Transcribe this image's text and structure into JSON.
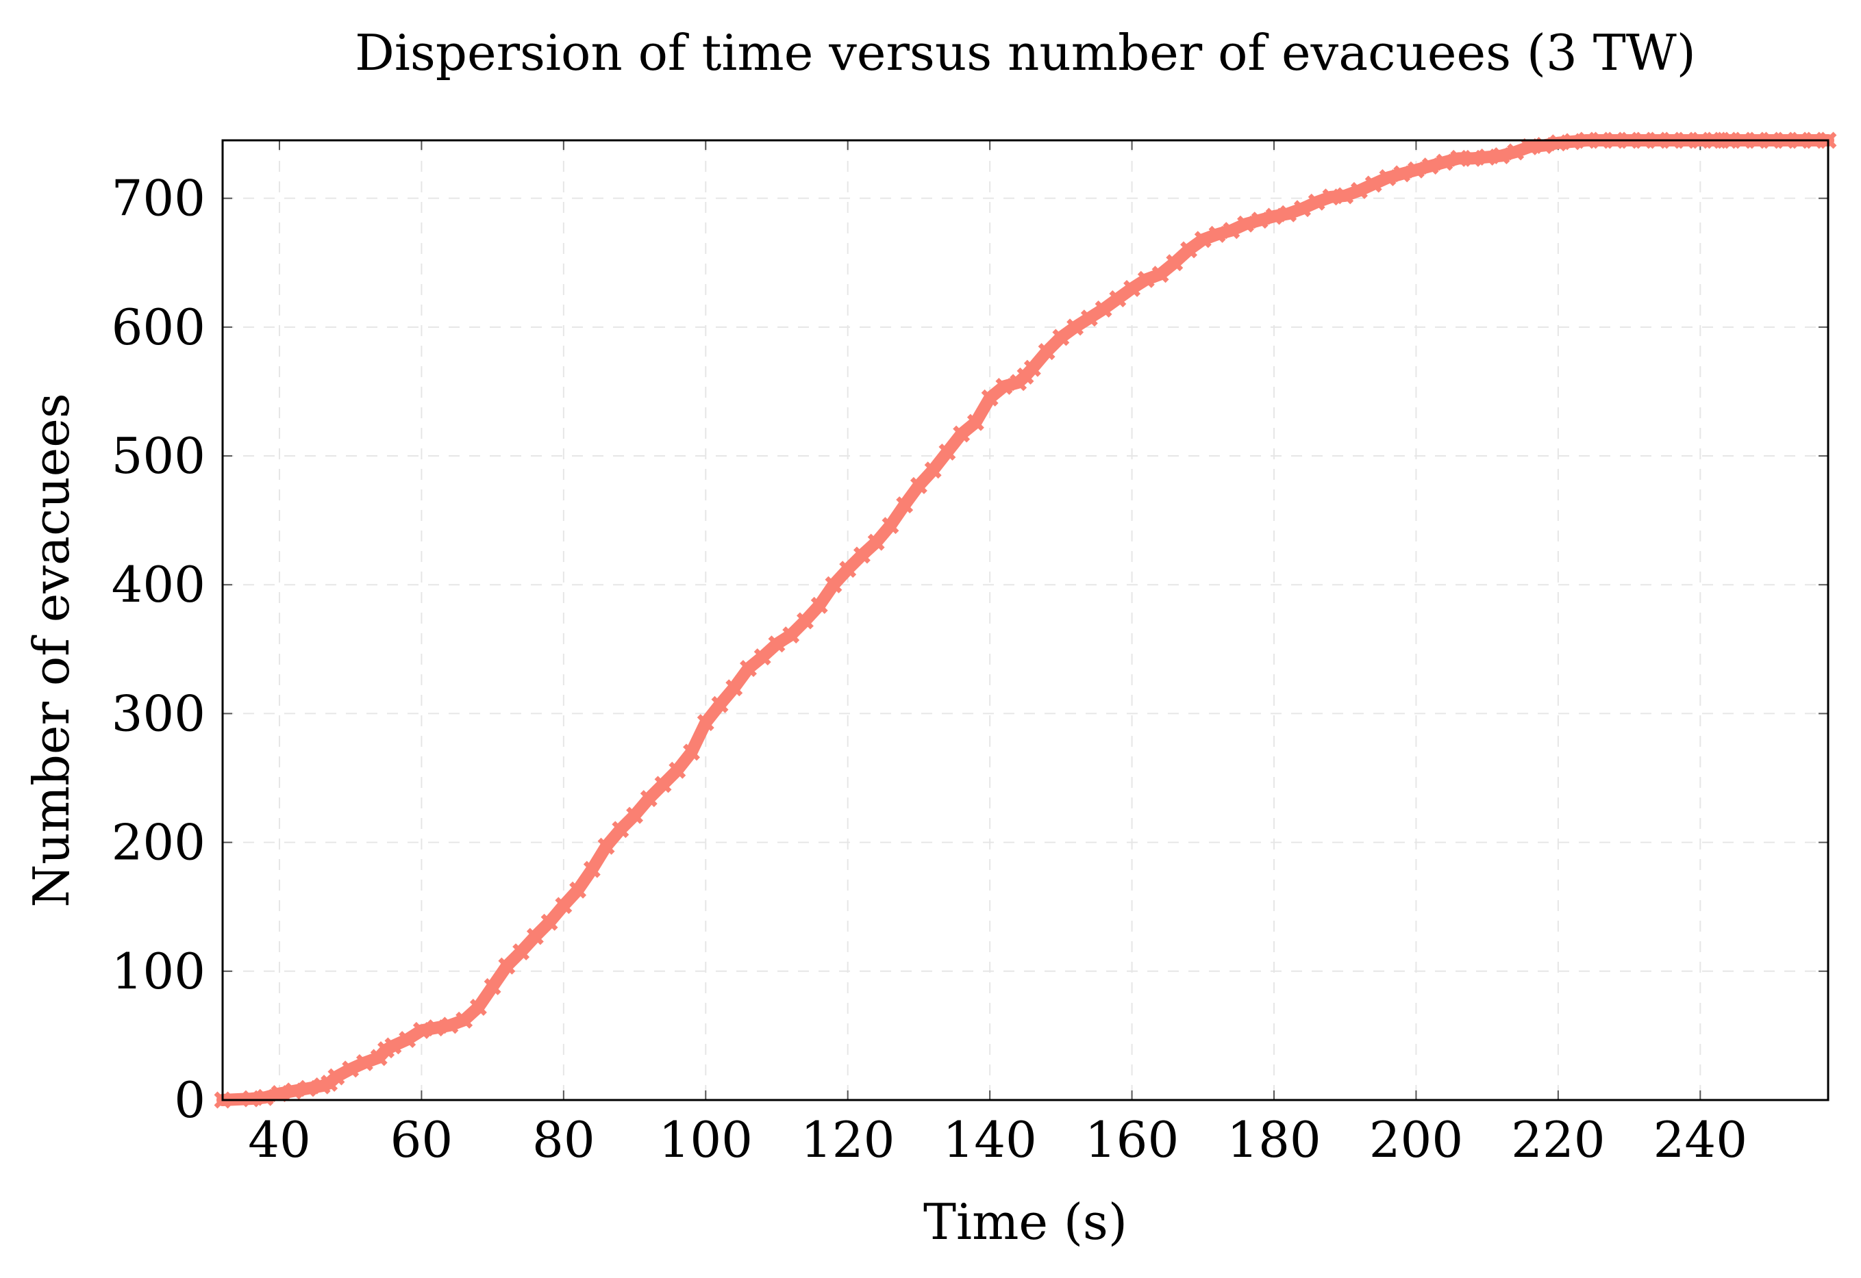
{
  "chart_data": {
    "type": "line",
    "title": "Dispersion of time versus number of evacuees (3 TW)",
    "xlabel": "Time (s)",
    "ylabel": "Number of evacuees",
    "xlim": [
      32,
      258
    ],
    "ylim": [
      0,
      745
    ],
    "xticks": [
      40,
      60,
      80,
      100,
      120,
      140,
      160,
      180,
      200,
      220,
      240
    ],
    "yticks": [
      0,
      100,
      200,
      300,
      400,
      500,
      600,
      700
    ],
    "grid": true,
    "legend": "none",
    "color": "#FA8072",
    "series": [
      {
        "name": "evacuees",
        "marker": "x",
        "x": [
          32,
          36,
          38,
          40,
          42,
          44,
          46,
          47,
          48,
          50,
          52,
          54,
          55,
          56,
          58,
          60,
          62,
          64,
          66,
          68,
          70,
          72,
          74,
          76,
          78,
          80,
          82,
          84,
          86,
          88,
          90,
          92,
          94,
          96,
          98,
          100,
          102,
          104,
          106,
          108,
          110,
          112,
          114,
          116,
          118,
          120,
          122,
          124,
          126,
          128,
          130,
          132,
          134,
          136,
          138,
          140,
          142,
          144,
          145,
          146,
          148,
          150,
          152,
          154,
          156,
          158,
          160,
          162,
          164,
          166,
          168,
          170,
          172,
          174,
          176,
          178,
          180,
          182,
          184,
          186,
          188,
          190,
          192,
          194,
          196,
          198,
          200,
          202,
          204,
          206,
          208,
          210,
          212,
          214,
          216,
          218,
          220,
          222,
          224,
          226,
          228,
          230,
          232,
          234,
          236,
          238,
          240,
          242,
          243,
          244,
          246,
          248,
          250,
          252,
          254,
          256,
          258
        ],
        "y": [
          0,
          1,
          2,
          5,
          7,
          9,
          11,
          13,
          18,
          24,
          29,
          33,
          39,
          42,
          47,
          54,
          56,
          58,
          62,
          72,
          88,
          104,
          115,
          127,
          138,
          151,
          163,
          179,
          197,
          210,
          221,
          234,
          245,
          256,
          270,
          293,
          307,
          320,
          335,
          344,
          354,
          361,
          372,
          384,
          400,
          412,
          423,
          433,
          446,
          462,
          477,
          489,
          503,
          517,
          526,
          545,
          554,
          557,
          562,
          568,
          581,
          592,
          600,
          607,
          614,
          622,
          630,
          637,
          641,
          650,
          660,
          668,
          672,
          675,
          680,
          683,
          686,
          688,
          692,
          697,
          701,
          702,
          706,
          711,
          716,
          719,
          722,
          725,
          728,
          731,
          731,
          732,
          733,
          736,
          740,
          741,
          743,
          744,
          745,
          745,
          745,
          745,
          745,
          745,
          745,
          745,
          745,
          745,
          745,
          745,
          745,
          745,
          745,
          745,
          745,
          745,
          745
        ]
      }
    ]
  }
}
